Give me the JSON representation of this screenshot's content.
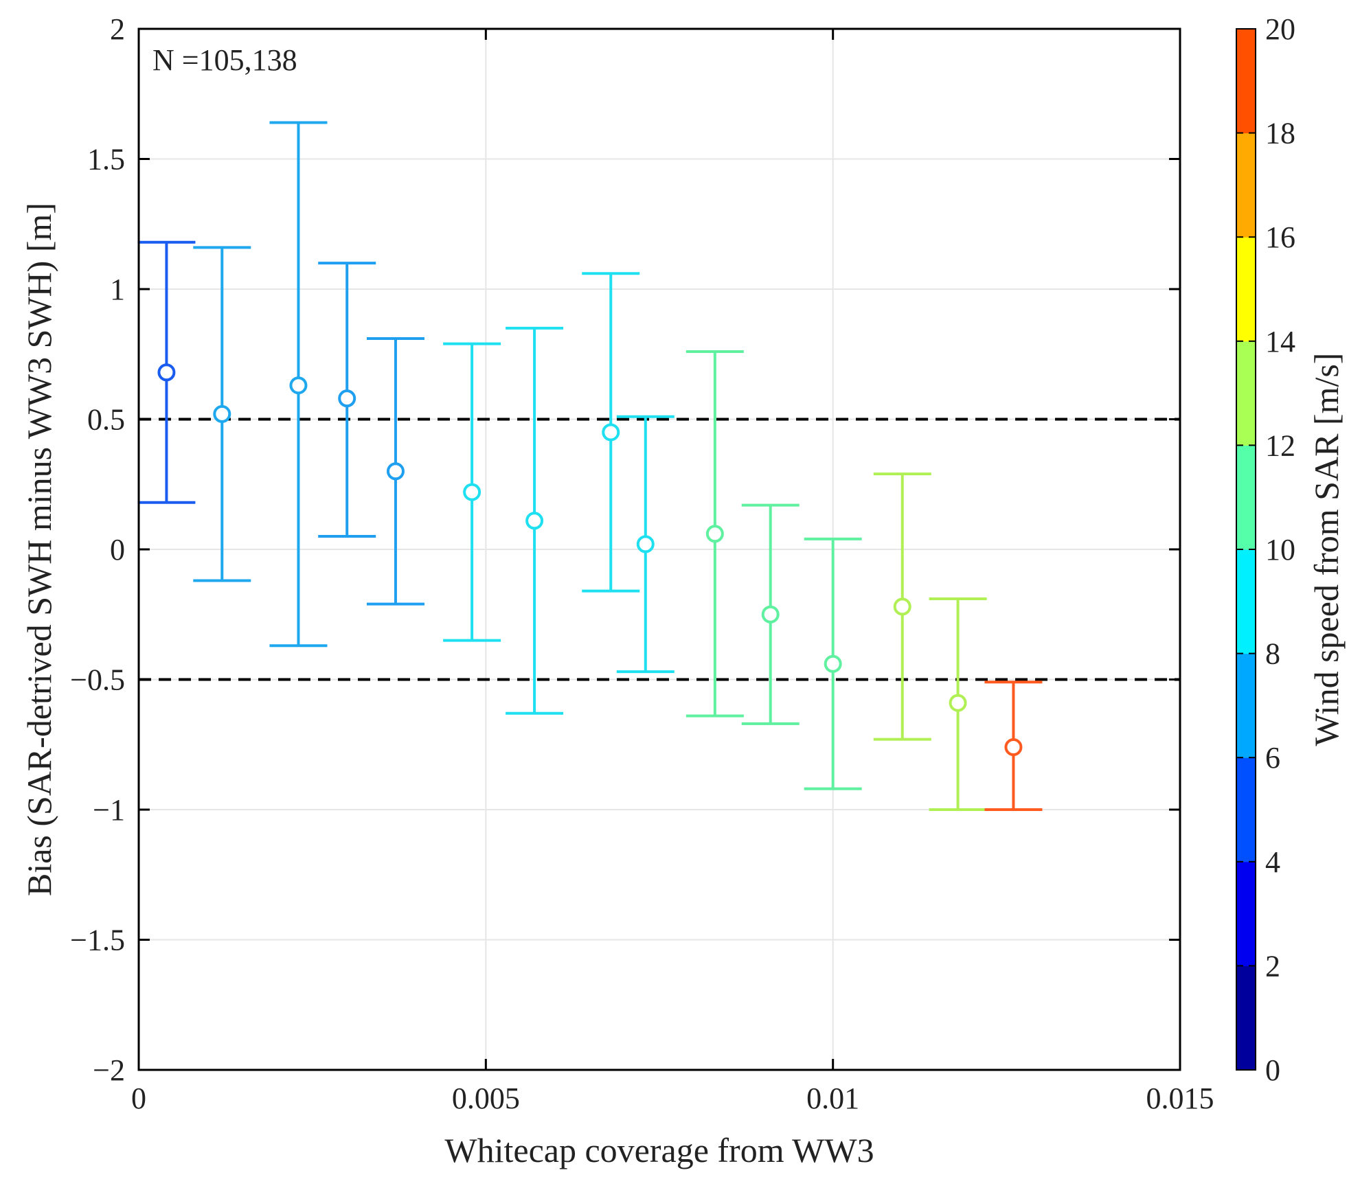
{
  "chart_data": {
    "type": "scatter",
    "subtype": "errorbar",
    "title": "",
    "xlabel": "Whitecap coverage from WW3",
    "ylabel": "Bias (SAR-detrived SWH minus WW3 SWH) [m]",
    "xlim": [
      0,
      0.015
    ],
    "ylim": [
      -2,
      2
    ],
    "xticks": [
      0,
      0.005,
      0.01,
      0.015
    ],
    "xtick_labels": [
      "0",
      "0.005",
      "0.01",
      "0.015"
    ],
    "yticks": [
      -2,
      -1.5,
      -1,
      -0.5,
      0,
      0.5,
      1,
      1.5,
      2
    ],
    "ytick_labels": [
      "−2",
      "−1.5",
      "−1",
      "−0.5",
      "0",
      "0.5",
      "1",
      "1.5",
      "2"
    ],
    "grid": true,
    "annotation": "N =105,138",
    "reference_lines": [
      0.5,
      -0.5
    ],
    "colorbar": {
      "label": "Wind speed from SAR [m/s]",
      "min": 0,
      "max": 20,
      "ticks": [
        0,
        2,
        4,
        6,
        8,
        10,
        12,
        14,
        16,
        18,
        20
      ],
      "tick_labels": [
        "0",
        "2",
        "4",
        "6",
        "8",
        "10",
        "12",
        "14",
        "16",
        "18",
        "20"
      ],
      "colors": [
        "#00009c",
        "#0000f0",
        "#0050ff",
        "#00a8ff",
        "#00f0ff",
        "#55ffaa",
        "#aaff55",
        "#ffff00",
        "#ffaa00",
        "#ff5000"
      ]
    },
    "points": [
      {
        "x": 0.0004,
        "mean": 0.68,
        "lower": 0.18,
        "upper": 1.18,
        "color": "#1a5cf0"
      },
      {
        "x": 0.0012,
        "mean": 0.52,
        "lower": -0.12,
        "upper": 1.16,
        "color": "#1fa8ee"
      },
      {
        "x": 0.0023,
        "mean": 0.63,
        "lower": -0.37,
        "upper": 1.64,
        "color": "#1fa8ee"
      },
      {
        "x": 0.003,
        "mean": 0.58,
        "lower": 0.05,
        "upper": 1.1,
        "color": "#1e9ff0"
      },
      {
        "x": 0.0037,
        "mean": 0.3,
        "lower": -0.21,
        "upper": 0.81,
        "color": "#1e9ff0"
      },
      {
        "x": 0.0048,
        "mean": 0.22,
        "lower": -0.35,
        "upper": 0.79,
        "color": "#1ee0f0"
      },
      {
        "x": 0.0057,
        "mean": 0.11,
        "lower": -0.63,
        "upper": 0.85,
        "color": "#1ee0f0"
      },
      {
        "x": 0.0068,
        "mean": 0.45,
        "lower": -0.16,
        "upper": 1.06,
        "color": "#1ee0f0"
      },
      {
        "x": 0.0073,
        "mean": 0.02,
        "lower": -0.47,
        "upper": 0.51,
        "color": "#1ee0f0"
      },
      {
        "x": 0.0083,
        "mean": 0.06,
        "lower": -0.64,
        "upper": 0.76,
        "color": "#5ff0a0"
      },
      {
        "x": 0.0091,
        "mean": -0.25,
        "lower": -0.67,
        "upper": 0.17,
        "color": "#5ff0a0"
      },
      {
        "x": 0.01,
        "mean": -0.44,
        "lower": -0.92,
        "upper": 0.04,
        "color": "#5ff0a0"
      },
      {
        "x": 0.011,
        "mean": -0.22,
        "lower": -0.73,
        "upper": 0.29,
        "color": "#b0f055"
      },
      {
        "x": 0.0118,
        "mean": -0.59,
        "lower": -1.0,
        "upper": -0.19,
        "color": "#b0f055"
      },
      {
        "x": 0.0126,
        "mean": -0.76,
        "lower": -1.0,
        "upper": -0.51,
        "color": "#ff5a1f"
      }
    ]
  }
}
